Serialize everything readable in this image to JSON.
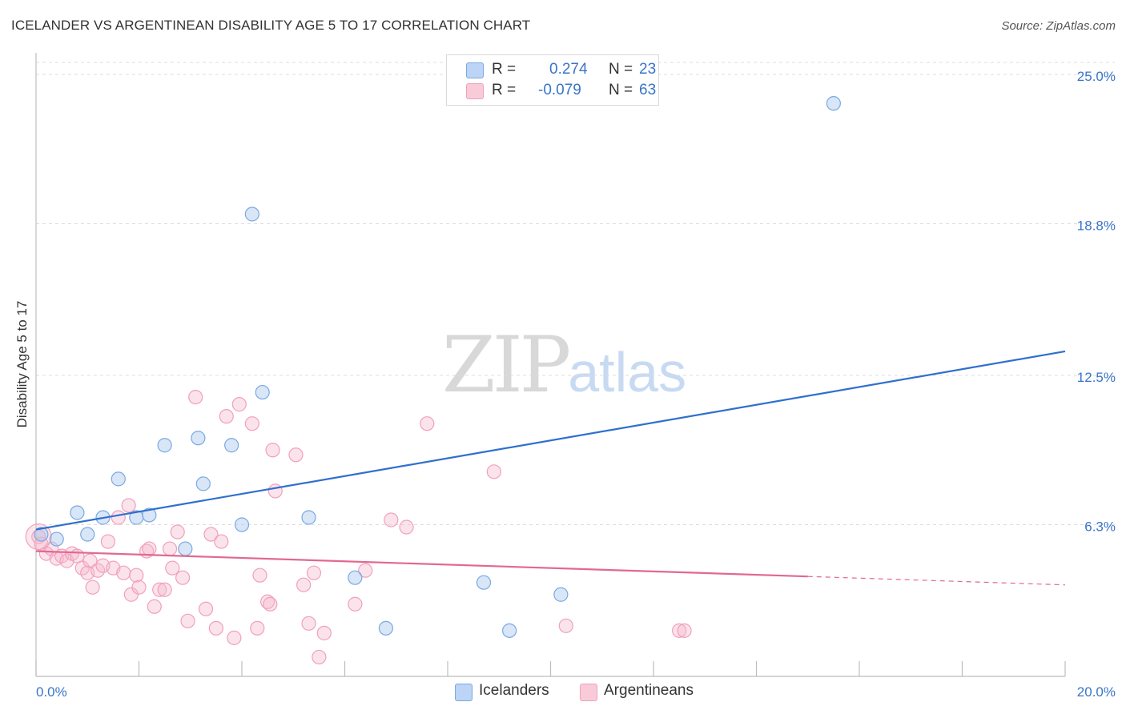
{
  "header": {
    "title": "ICELANDER VS ARGENTINEAN DISABILITY AGE 5 TO 17 CORRELATION CHART",
    "source": "Source: ZipAtlas.com"
  },
  "legend_stats": {
    "icelanders": {
      "r_label": "R =",
      "r_value": "0.274",
      "n_label": "N =",
      "n_value": "23",
      "color": "#a9c8f0"
    },
    "argentineans": {
      "r_label": "R =",
      "r_value": "-0.079",
      "n_label": "N =",
      "n_value": "63",
      "color": "#f6b9cc"
    }
  },
  "bottom_legend": {
    "icelanders_label": "Icelanders",
    "argentineans_label": "Argentineans"
  },
  "watermark": {
    "zip": "ZIP",
    "atlas": "atlas"
  },
  "chart_data": {
    "type": "scatter",
    "title": "ICELANDER VS ARGENTINEAN DISABILITY AGE 5 TO 17 CORRELATION CHART",
    "ylabel": "Disability Age 5 to 17",
    "xlabel": "",
    "xlim": [
      0,
      20
    ],
    "ylim": [
      0,
      25.5
    ],
    "x_tick_labels": [
      "0.0%",
      "20.0%"
    ],
    "y_ticks": [
      6.3,
      12.5,
      18.8,
      25.0
    ],
    "y_tick_labels": [
      "6.3%",
      "12.5%",
      "18.8%",
      "25.0%"
    ],
    "grid": "horizontal dashed",
    "legend_position": "top-center",
    "series": [
      {
        "name": "Icelanders",
        "color": "#7aa9e0",
        "trend_color": "#2f6fce",
        "trend": {
          "x0": 0,
          "y0": 6.1,
          "x1": 20,
          "y1": 13.5,
          "solid_until": 20
        },
        "points": [
          [
            0.4,
            5.7
          ],
          [
            0.8,
            6.8
          ],
          [
            1.0,
            5.9
          ],
          [
            1.3,
            6.6
          ],
          [
            1.6,
            8.2
          ],
          [
            1.95,
            6.6
          ],
          [
            2.2,
            6.7
          ],
          [
            2.5,
            9.6
          ],
          [
            2.9,
            5.3
          ],
          [
            3.15,
            9.9
          ],
          [
            3.25,
            8.0
          ],
          [
            3.8,
            9.6
          ],
          [
            4.0,
            6.3
          ],
          [
            4.2,
            19.2
          ],
          [
            4.4,
            11.8
          ],
          [
            5.3,
            6.6
          ],
          [
            6.2,
            4.1
          ],
          [
            6.8,
            2.0
          ],
          [
            8.7,
            3.9
          ],
          [
            9.2,
            1.9
          ],
          [
            10.2,
            3.4
          ],
          [
            15.5,
            23.8
          ],
          [
            0.1,
            5.9
          ]
        ]
      },
      {
        "name": "Argentineans",
        "color": "#f1a0bb",
        "trend_color": "#e2688f",
        "trend": {
          "x0": 0,
          "y0": 5.2,
          "x1": 20,
          "y1": 3.8,
          "solid_until": 15
        },
        "points": [
          [
            0.05,
            5.8
          ],
          [
            0.1,
            5.5
          ],
          [
            0.2,
            5.1
          ],
          [
            0.3,
            5.3
          ],
          [
            0.4,
            4.9
          ],
          [
            0.5,
            5.0
          ],
          [
            0.6,
            4.8
          ],
          [
            0.7,
            5.1
          ],
          [
            0.8,
            5.0
          ],
          [
            0.9,
            4.5
          ],
          [
            1.0,
            4.3
          ],
          [
            1.05,
            4.8
          ],
          [
            1.1,
            3.7
          ],
          [
            1.2,
            4.4
          ],
          [
            1.3,
            4.6
          ],
          [
            1.4,
            5.6
          ],
          [
            1.5,
            4.5
          ],
          [
            1.6,
            6.6
          ],
          [
            1.7,
            4.3
          ],
          [
            1.8,
            7.1
          ],
          [
            1.85,
            3.4
          ],
          [
            1.95,
            4.2
          ],
          [
            2.0,
            3.7
          ],
          [
            2.15,
            5.2
          ],
          [
            2.2,
            5.3
          ],
          [
            2.3,
            2.9
          ],
          [
            2.4,
            3.6
          ],
          [
            2.5,
            3.6
          ],
          [
            2.6,
            5.3
          ],
          [
            2.65,
            4.5
          ],
          [
            2.75,
            6.0
          ],
          [
            2.85,
            4.1
          ],
          [
            2.95,
            2.3
          ],
          [
            3.1,
            11.6
          ],
          [
            3.3,
            2.8
          ],
          [
            3.4,
            5.9
          ],
          [
            3.5,
            2.0
          ],
          [
            3.6,
            5.6
          ],
          [
            3.7,
            10.8
          ],
          [
            3.85,
            1.6
          ],
          [
            3.95,
            11.3
          ],
          [
            4.2,
            10.5
          ],
          [
            4.3,
            2.0
          ],
          [
            4.35,
            4.2
          ],
          [
            4.5,
            3.1
          ],
          [
            4.55,
            3.0
          ],
          [
            4.6,
            9.4
          ],
          [
            4.65,
            7.7
          ],
          [
            5.05,
            9.2
          ],
          [
            5.2,
            3.8
          ],
          [
            5.3,
            2.2
          ],
          [
            5.4,
            4.3
          ],
          [
            5.5,
            0.8
          ],
          [
            5.6,
            1.8
          ],
          [
            6.2,
            3.0
          ],
          [
            6.4,
            4.4
          ],
          [
            6.9,
            6.5
          ],
          [
            7.2,
            6.2
          ],
          [
            7.6,
            10.5
          ],
          [
            8.9,
            8.5
          ],
          [
            10.3,
            2.1
          ],
          [
            12.5,
            1.9
          ],
          [
            12.6,
            1.9
          ]
        ]
      }
    ]
  }
}
